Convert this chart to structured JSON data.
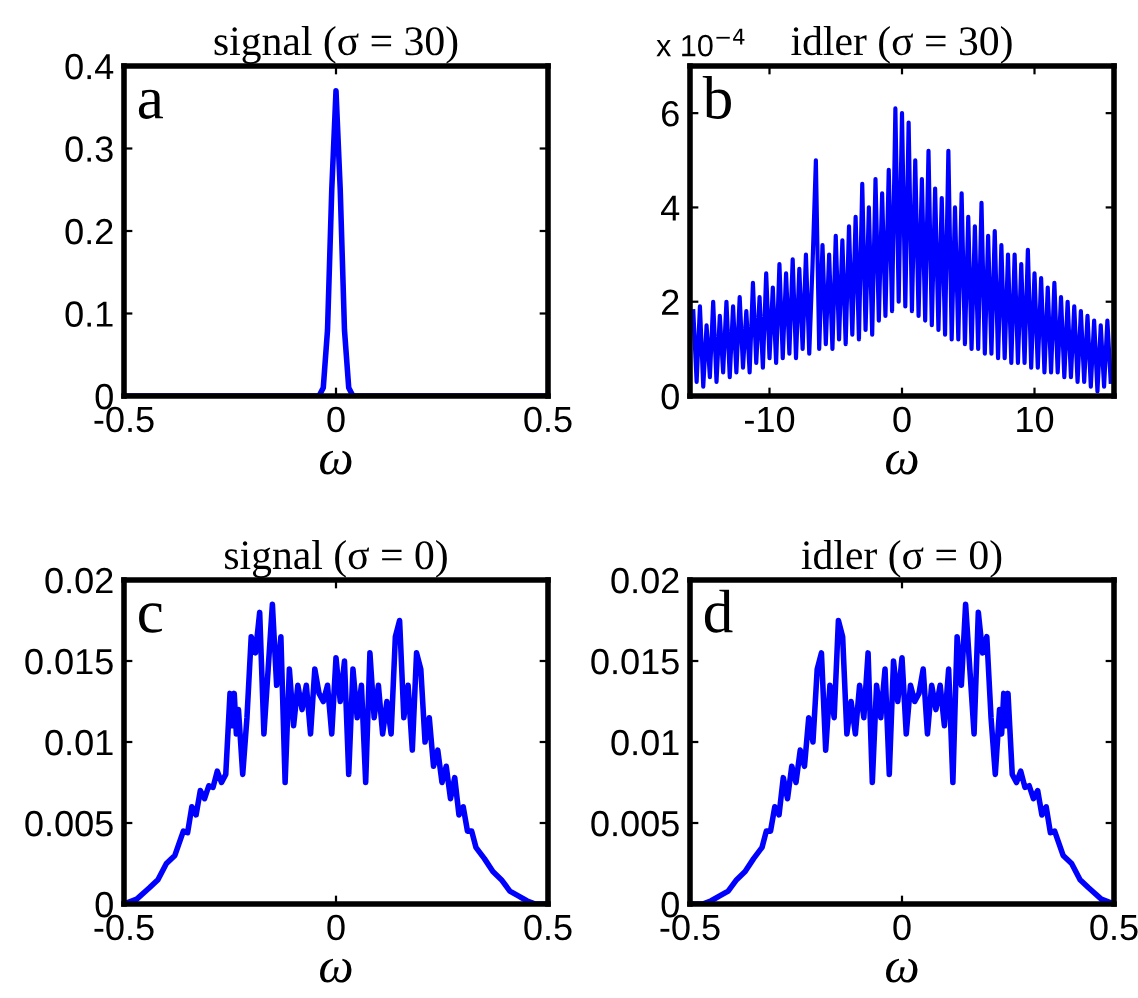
{
  "chart_data": [
    {
      "type": "line",
      "title": "signal (σ = 30)",
      "xlabel": "ω",
      "xlim": [
        -0.5,
        0.5
      ],
      "xticks": [
        -0.5,
        0,
        0.5
      ],
      "ylim": [
        0,
        0.4
      ],
      "yticks": [
        0,
        0.1,
        0.2,
        0.3,
        0.4
      ],
      "annotations": [
        "a"
      ],
      "series": [
        {
          "color": "#0000ff",
          "x": [
            -0.5,
            -0.04,
            -0.03,
            -0.02,
            -0.01,
            0,
            0.01,
            0.02,
            0.03,
            0.04,
            0.5
          ],
          "values": [
            0,
            0,
            0.01,
            0.08,
            0.25,
            0.37,
            0.25,
            0.08,
            0.01,
            0,
            0
          ]
        }
      ]
    },
    {
      "type": "line",
      "title": "idler (σ = 30)",
      "xlabel": "ω",
      "xlim": [
        -16,
        16
      ],
      "xticks": [
        -10,
        0,
        10
      ],
      "ylim": [
        0,
        7
      ],
      "yticks": [
        0,
        2,
        4,
        6
      ],
      "annotations": [
        "b",
        "x 10$^{−4}$"
      ],
      "series": [
        {
          "color": "#0000ff",
          "x": [
            -15.75,
            -15.5,
            -15.25,
            -15,
            -14.75,
            -14.5,
            -14.25,
            -14,
            -13.75,
            -13.5,
            -13.25,
            -13,
            -12.75,
            -12.5,
            -12.25,
            -12,
            -11.75,
            -11.5,
            -11.25,
            -11,
            -10.75,
            -10.5,
            -10.25,
            -10,
            -9.75,
            -9.5,
            -9.25,
            -9,
            -8.75,
            -8.5,
            -8.25,
            -8,
            -7.75,
            -7.5,
            -7.25,
            -7,
            -6.75,
            -6.5,
            -6.25,
            -6,
            -5.75,
            -5.5,
            -5.25,
            -5,
            -4.75,
            -4.5,
            -4.25,
            -4,
            -3.75,
            -3.5,
            -3.25,
            -3,
            -2.75,
            -2.5,
            -2.25,
            -2,
            -1.75,
            -1.5,
            -1.25,
            -1,
            -0.75,
            -0.5,
            -0.25,
            0,
            0.25,
            0.5,
            0.75,
            1,
            1.25,
            1.5,
            1.75,
            2,
            2.25,
            2.5,
            2.75,
            3,
            3.25,
            3.5,
            3.75,
            4,
            4.25,
            4.5,
            4.75,
            5,
            5.25,
            5.5,
            5.75,
            6,
            6.25,
            6.5,
            6.75,
            7,
            7.25,
            7.5,
            7.75,
            8,
            8.25,
            8.5,
            8.75,
            9,
            9.25,
            9.5,
            9.75,
            10,
            10.25,
            10.5,
            10.75,
            11,
            11.25,
            11.5,
            11.75,
            12,
            12.25,
            12.5,
            12.75,
            13,
            13.25,
            13.5,
            13.75,
            14,
            14.25,
            14.5,
            14.75,
            15,
            15.25,
            15.5,
            15.75
          ],
          "values": [
            1.8,
            0.3,
            1.9,
            0.2,
            1.5,
            0.4,
            2.0,
            0.3,
            1.7,
            0.5,
            2.0,
            0.4,
            1.9,
            0.5,
            2.1,
            0.6,
            1.8,
            0.5,
            2.4,
            0.7,
            2.1,
            0.6,
            2.6,
            0.8,
            2.3,
            0.7,
            2.8,
            0.8,
            2.6,
            0.9,
            2.9,
            0.8,
            2.7,
            1.0,
            3.0,
            0.9,
            2.8,
            5.0,
            1.0,
            3.2,
            1.1,
            3.0,
            1.0,
            3.4,
            1.2,
            3.3,
            1.1,
            3.6,
            1.3,
            3.8,
            1.2,
            4.5,
            1.4,
            4.0,
            1.3,
            4.6,
            1.6,
            4.3,
            1.7,
            4.8,
            1.8,
            6.1,
            2.0,
            6.0,
            1.9,
            5.8,
            1.8,
            5.0,
            1.7,
            4.6,
            1.6,
            5.2,
            1.5,
            4.4,
            1.4,
            4.2,
            1.3,
            5.2,
            1.2,
            4.0,
            1.2,
            4.3,
            1.1,
            3.8,
            1.0,
            3.6,
            1.0,
            4.1,
            0.9,
            3.4,
            0.9,
            3.5,
            0.8,
            3.2,
            0.8,
            3.0,
            0.7,
            3.0,
            0.7,
            2.8,
            0.7,
            3.1,
            0.6,
            2.6,
            0.6,
            2.5,
            0.5,
            2.3,
            0.5,
            2.4,
            0.5,
            2.1,
            0.4,
            2.0,
            0.4,
            1.9,
            0.3,
            1.8,
            0.3,
            1.7,
            0.2,
            1.6,
            0.1,
            1.5,
            0.2,
            1.6,
            0.3
          ]
        }
      ]
    },
    {
      "type": "line",
      "title": "signal (σ = 0)",
      "xlabel": "ω",
      "xlim": [
        -0.5,
        0.5
      ],
      "xticks": [
        -0.5,
        0,
        0.5
      ],
      "ylim": [
        0,
        0.02
      ],
      "yticks": [
        0,
        0.005,
        0.01,
        0.015,
        0.02
      ],
      "annotations": [
        "c"
      ],
      "series": [
        {
          "color": "#0000ff",
          "x": [
            -0.5,
            -0.47,
            -0.44,
            -0.42,
            -0.4,
            -0.38,
            -0.36,
            -0.35,
            -0.34,
            -0.33,
            -0.32,
            -0.31,
            -0.3,
            -0.29,
            -0.28,
            -0.27,
            -0.26,
            -0.25,
            -0.245,
            -0.24,
            -0.235,
            -0.23,
            -0.22,
            -0.21,
            -0.2,
            -0.19,
            -0.18,
            -0.17,
            -0.16,
            -0.15,
            -0.14,
            -0.13,
            -0.12,
            -0.11,
            -0.1,
            -0.09,
            -0.08,
            -0.07,
            -0.06,
            -0.05,
            -0.04,
            -0.03,
            -0.02,
            -0.01,
            0,
            0.01,
            0.02,
            0.03,
            0.04,
            0.05,
            0.06,
            0.07,
            0.08,
            0.09,
            0.1,
            0.11,
            0.12,
            0.13,
            0.14,
            0.15,
            0.16,
            0.17,
            0.18,
            0.19,
            0.2,
            0.21,
            0.22,
            0.23,
            0.24,
            0.25,
            0.26,
            0.27,
            0.28,
            0.29,
            0.3,
            0.31,
            0.32,
            0.33,
            0.35,
            0.37,
            0.39,
            0.41,
            0.43,
            0.45,
            0.47,
            0.5
          ],
          "values": [
            0,
            0.0003,
            0.001,
            0.0015,
            0.0025,
            0.003,
            0.0045,
            0.0044,
            0.006,
            0.0055,
            0.007,
            0.0065,
            0.0073,
            0.0072,
            0.0082,
            0.0075,
            0.008,
            0.013,
            0.011,
            0.013,
            0.0105,
            0.012,
            0.008,
            0.0115,
            0.0165,
            0.0155,
            0.018,
            0.0105,
            0.0145,
            0.0185,
            0.0135,
            0.0165,
            0.0075,
            0.0145,
            0.011,
            0.0135,
            0.012,
            0.0135,
            0.0105,
            0.0145,
            0.013,
            0.0125,
            0.0135,
            0.0105,
            0.0152,
            0.0125,
            0.015,
            0.008,
            0.0145,
            0.0115,
            0.0135,
            0.0075,
            0.0155,
            0.0115,
            0.0135,
            0.0105,
            0.0125,
            0.0105,
            0.0165,
            0.0175,
            0.0115,
            0.0135,
            0.0095,
            0.0155,
            0.0145,
            0.01,
            0.0115,
            0.0085,
            0.0095,
            0.0075,
            0.0085,
            0.0065,
            0.0078,
            0.0055,
            0.006,
            0.0045,
            0.0045,
            0.0035,
            0.0028,
            0.002,
            0.0015,
            0.0008,
            0.0005,
            0.0002,
            0,
            0
          ]
        }
      ]
    },
    {
      "type": "line",
      "title": "idler (σ = 0)",
      "xlabel": "ω",
      "xlim": [
        -0.5,
        0.5
      ],
      "xticks": [
        -0.5,
        0,
        0.5
      ],
      "ylim": [
        0,
        0.02
      ],
      "yticks": [
        0,
        0.005,
        0.01,
        0.015,
        0.02
      ],
      "annotations": [
        "d"
      ],
      "series": [
        {
          "color": "#0000ff",
          "x": [
            -0.5,
            -0.47,
            -0.45,
            -0.43,
            -0.41,
            -0.39,
            -0.37,
            -0.35,
            -0.33,
            -0.32,
            -0.31,
            -0.3,
            -0.29,
            -0.28,
            -0.27,
            -0.26,
            -0.25,
            -0.24,
            -0.23,
            -0.22,
            -0.21,
            -0.2,
            -0.19,
            -0.18,
            -0.17,
            -0.16,
            -0.15,
            -0.14,
            -0.13,
            -0.12,
            -0.11,
            -0.1,
            -0.09,
            -0.08,
            -0.07,
            -0.06,
            -0.05,
            -0.04,
            -0.03,
            -0.02,
            -0.01,
            0,
            0.01,
            0.02,
            0.03,
            0.04,
            0.05,
            0.06,
            0.07,
            0.08,
            0.09,
            0.1,
            0.11,
            0.12,
            0.13,
            0.14,
            0.15,
            0.16,
            0.17,
            0.18,
            0.19,
            0.2,
            0.21,
            0.22,
            0.23,
            0.235,
            0.24,
            0.245,
            0.25,
            0.26,
            0.27,
            0.28,
            0.29,
            0.3,
            0.31,
            0.32,
            0.33,
            0.34,
            0.35,
            0.36,
            0.38,
            0.4,
            0.42,
            0.44,
            0.47,
            0.5
          ],
          "values": [
            0,
            0,
            0.0002,
            0.0005,
            0.0008,
            0.0015,
            0.002,
            0.0028,
            0.0035,
            0.0045,
            0.0045,
            0.006,
            0.0055,
            0.0078,
            0.0065,
            0.0085,
            0.0075,
            0.0095,
            0.0085,
            0.0115,
            0.01,
            0.0145,
            0.0155,
            0.0095,
            0.0135,
            0.0115,
            0.0175,
            0.0165,
            0.0105,
            0.0125,
            0.0105,
            0.0135,
            0.0115,
            0.0155,
            0.0075,
            0.0135,
            0.0115,
            0.0145,
            0.008,
            0.015,
            0.0125,
            0.0152,
            0.0105,
            0.0135,
            0.0125,
            0.013,
            0.0145,
            0.0105,
            0.0135,
            0.012,
            0.0135,
            0.011,
            0.0145,
            0.0075,
            0.0165,
            0.0135,
            0.0185,
            0.0145,
            0.0105,
            0.018,
            0.0155,
            0.0165,
            0.0115,
            0.008,
            0.012,
            0.0105,
            0.013,
            0.011,
            0.013,
            0.008,
            0.0075,
            0.0082,
            0.0072,
            0.0073,
            0.0065,
            0.007,
            0.0055,
            0.006,
            0.0044,
            0.0045,
            0.003,
            0.0025,
            0.0015,
            0.001,
            0.0003,
            0
          ]
        }
      ]
    }
  ]
}
